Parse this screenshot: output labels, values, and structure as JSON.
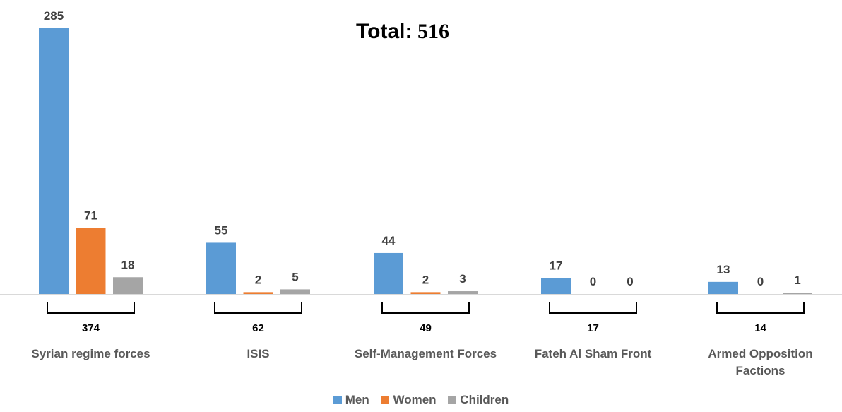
{
  "chart_data": {
    "type": "bar",
    "title": {
      "label": "Total:",
      "value": "516"
    },
    "categories": [
      "Syrian regime forces",
      "ISIS",
      "Self-Management Forces",
      "Fateh Al Sham Front",
      "Armed Opposition Factions"
    ],
    "category_lines": [
      [
        "Syrian regime forces"
      ],
      [
        "ISIS"
      ],
      [
        "Self-Management Forces"
      ],
      [
        "Fateh Al Sham Front"
      ],
      [
        "Armed Opposition",
        "Factions"
      ]
    ],
    "series": [
      {
        "name": "Men",
        "color": "#5B9BD5",
        "values": [
          285,
          55,
          44,
          17,
          13
        ]
      },
      {
        "name": "Women",
        "color": "#ED7D31",
        "values": [
          71,
          2,
          2,
          0,
          0
        ]
      },
      {
        "name": "Children",
        "color": "#A5A5A5",
        "values": [
          18,
          5,
          3,
          0,
          1
        ]
      }
    ],
    "category_totals": [
      "374",
      "62",
      "49",
      "17",
      "14"
    ],
    "ylim": [
      0,
      285
    ],
    "grid": false,
    "legend_position": "bottom"
  }
}
